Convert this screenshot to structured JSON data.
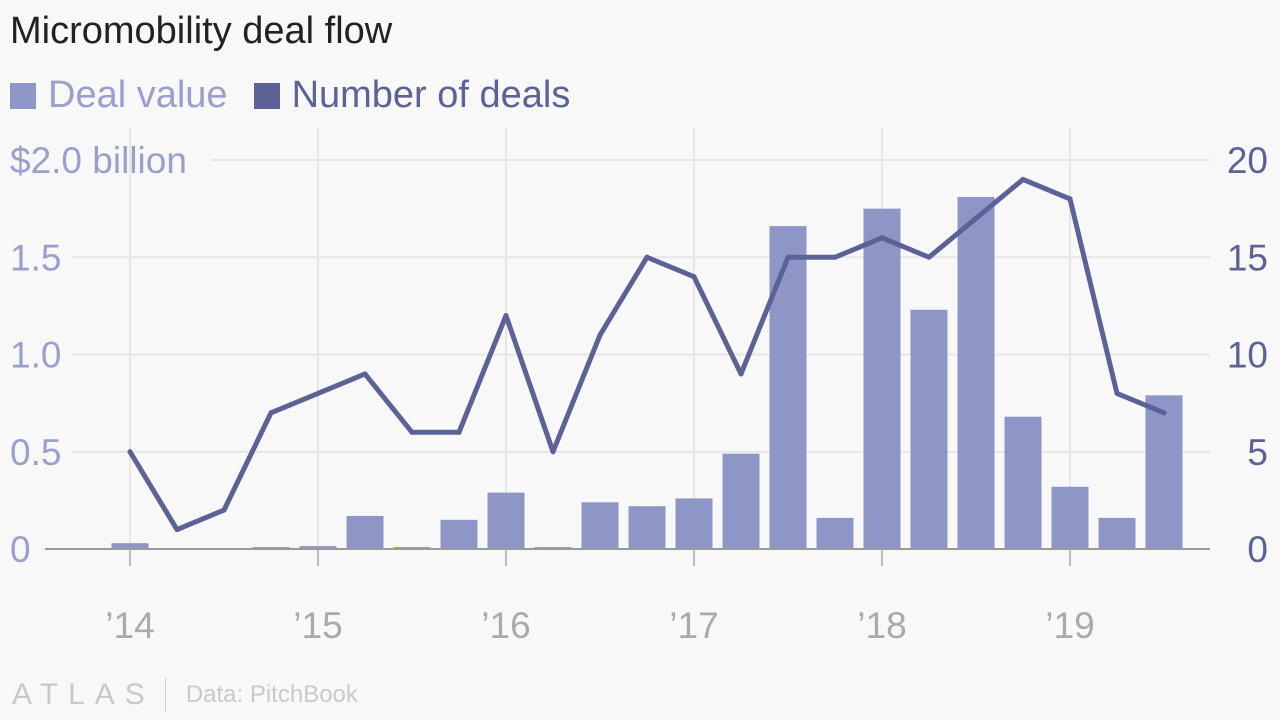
{
  "title": "Micromobility deal flow",
  "colors": {
    "bar": "#8e96c7",
    "line": "#5c6296",
    "left_axis_text": "#9aa0cc",
    "right_axis_text": "#5c6296",
    "grid": "#e6e6e6",
    "baseline": "#999999",
    "x_tick_text": "#aaaaaa"
  },
  "footer": {
    "logo": "ATLAS",
    "source": "Data: PitchBook"
  },
  "chart_data": {
    "type": "bar+line",
    "title": "Micromobility deal flow",
    "legend": [
      {
        "name": "Deal value",
        "color": "#8e96c7"
      },
      {
        "name": "Number of deals",
        "color": "#5c6296"
      }
    ],
    "quarters": [
      "2014Q1",
      "2014Q2",
      "2014Q3",
      "2014Q4",
      "2015Q1",
      "2015Q2",
      "2015Q3",
      "2015Q4",
      "2016Q1",
      "2016Q2",
      "2016Q3",
      "2016Q4",
      "2017Q1",
      "2017Q2",
      "2017Q3",
      "2017Q4",
      "2018Q1",
      "2018Q2",
      "2018Q3",
      "2018Q4",
      "2019Q1",
      "2019Q2",
      "2019Q3"
    ],
    "series": [
      {
        "name": "Deal value",
        "type": "bar",
        "axis": "left",
        "unit": "billion USD",
        "values": [
          0.03,
          0.0,
          0.005,
          0.01,
          0.015,
          0.17,
          0.01,
          0.15,
          0.29,
          0.01,
          0.24,
          0.22,
          0.26,
          0.49,
          1.66,
          0.16,
          1.75,
          1.23,
          1.81,
          0.68,
          0.32,
          0.16,
          0.79
        ]
      },
      {
        "name": "Number of deals",
        "type": "line",
        "axis": "right",
        "values": [
          5,
          1,
          2,
          7,
          8,
          9,
          6,
          6,
          12,
          5,
          11,
          15,
          14,
          9,
          15,
          15,
          16,
          15,
          17,
          19,
          18,
          8,
          7
        ]
      }
    ],
    "left_axis": {
      "min": 0,
      "max": 2.0,
      "ticks": [
        0,
        0.5,
        1.0,
        1.5,
        2.0
      ],
      "tick_labels": [
        "0",
        "0.5",
        "1.0",
        "1.5",
        "$2.0 billion"
      ]
    },
    "right_axis": {
      "min": 0,
      "max": 20,
      "ticks": [
        0,
        5,
        10,
        15,
        20
      ],
      "tick_labels": [
        "0",
        "5",
        "10",
        "15",
        "20"
      ]
    },
    "x_ticks": [
      {
        "label": "’14",
        "quarter_index": 0
      },
      {
        "label": "’15",
        "quarter_index": 4
      },
      {
        "label": "’16",
        "quarter_index": 8
      },
      {
        "label": "’17",
        "quarter_index": 12
      },
      {
        "label": "’18",
        "quarter_index": 16
      },
      {
        "label": "’19",
        "quarter_index": 20
      }
    ],
    "grid": true
  }
}
